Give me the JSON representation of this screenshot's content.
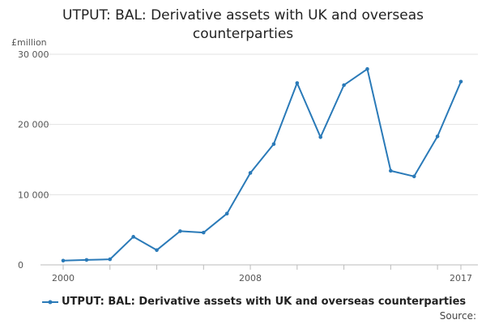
{
  "chart_data": {
    "type": "line",
    "title": "UTPUT: BAL: Derivative assets with UK and overseas counterparties",
    "ylabel": "£million",
    "xlabel": "",
    "ylim": [
      0,
      30000
    ],
    "xlim": [
      2000,
      2017
    ],
    "y_ticks": [
      {
        "value": 0,
        "label": "0"
      },
      {
        "value": 10000,
        "label": "10 000"
      },
      {
        "value": 20000,
        "label": "20 000"
      },
      {
        "value": 30000,
        "label": "30 000"
      }
    ],
    "x_ticks_labeled": [
      {
        "value": 2000,
        "label": "2000"
      },
      {
        "value": 2008,
        "label": "2008"
      },
      {
        "value": 2017,
        "label": "2017"
      }
    ],
    "x_ticks_minor": [
      2002,
      2004,
      2006,
      2010,
      2012,
      2014,
      2016
    ],
    "grid": true,
    "legend_position": "bottom",
    "series": [
      {
        "name": "UTPUT: BAL: Derivative assets with UK and overseas counterparties",
        "color": "#2a7ab8",
        "x": [
          2000,
          2001,
          2002,
          2003,
          2004,
          2005,
          2006,
          2007,
          2008,
          2009,
          2010,
          2011,
          2012,
          2013,
          2014,
          2015,
          2016,
          2017
        ],
        "values": [
          600,
          700,
          800,
          4000,
          2100,
          4800,
          4600,
          7300,
          13100,
          17200,
          25900,
          18200,
          25600,
          27900,
          13400,
          12600,
          18300,
          26100
        ]
      }
    ]
  },
  "source_label": "Source:"
}
